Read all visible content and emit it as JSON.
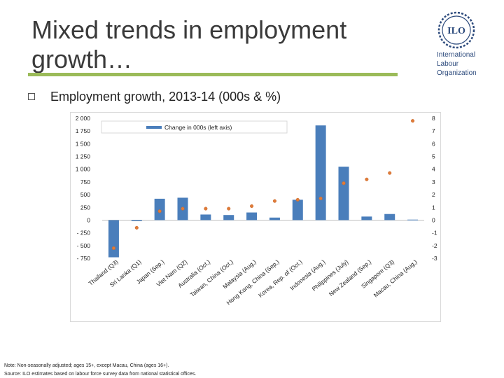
{
  "slide": {
    "title_line1": "Mixed trends in employment",
    "title_line2": "growth…",
    "bullet": "Employment growth, 2013-14 (000s & %)",
    "note": "Note: Non-seasonally adjusted; ages 15+, except Macau, China (ages 16+).",
    "source": "Source: ILO estimates based on labour force survey data from national statistical offices."
  },
  "logo": {
    "mark": "ILO",
    "lines": [
      "International",
      "Labour",
      "Organization"
    ],
    "color": "#2c4a7c"
  },
  "colors": {
    "bar": "#4a7ebb",
    "point": "#e07b39",
    "accent_rule": "#9bbb59"
  },
  "chart_data": {
    "type": "bar",
    "title": "",
    "categories": [
      "Thailand (Q3)",
      "Sri Lanka (Q1)",
      "Japan (Sep.)",
      "Viet Nam (Q2)",
      "Australia (Oct.)",
      "Taiwan, China (Oct.)",
      "Malaysia (Aug.)",
      "Hong Kong, China (Sep.)",
      "Korea, Rep. of (Oct.)",
      "Indonesia (Aug.)",
      "Philippines (July)",
      "New Zealand (Sep.)",
      "Singapore (Q3)",
      "Macau, China (Aug.)"
    ],
    "series": [
      {
        "name": "Change in 000s (left axis)",
        "type": "bar",
        "axis": "left",
        "values": [
          -730,
          -20,
          420,
          440,
          110,
          100,
          150,
          50,
          400,
          1860,
          1050,
          70,
          120,
          10
        ]
      },
      {
        "type": "scatter",
        "axis": "right",
        "values": [
          -2.2,
          -0.6,
          0.7,
          0.9,
          0.9,
          0.9,
          1.1,
          1.5,
          1.6,
          1.7,
          2.9,
          3.2,
          3.7,
          7.8
        ]
      }
    ],
    "y_left": {
      "ylim": [
        -750,
        2000
      ],
      "ticks": [
        -750,
        -500,
        -250,
        0,
        250,
        500,
        750,
        1000,
        1250,
        1500,
        1750,
        2000
      ],
      "tick_labels": [
        "- 750",
        "- 500",
        "- 250",
        "0",
        "250",
        "500",
        "750",
        "1 000",
        "1 250",
        "1 500",
        "1 750",
        "2 000"
      ]
    },
    "y_right": {
      "ylim": [
        -3,
        8
      ],
      "ticks": [
        -3,
        -2,
        -1,
        0,
        1,
        2,
        3,
        4,
        5,
        6,
        7,
        8
      ],
      "tick_labels": [
        "-3",
        "-2",
        "-1",
        "0",
        "1",
        "2",
        "3",
        "4",
        "5",
        "6",
        "7",
        "8"
      ]
    },
    "grid": false,
    "legend": "top-left"
  }
}
